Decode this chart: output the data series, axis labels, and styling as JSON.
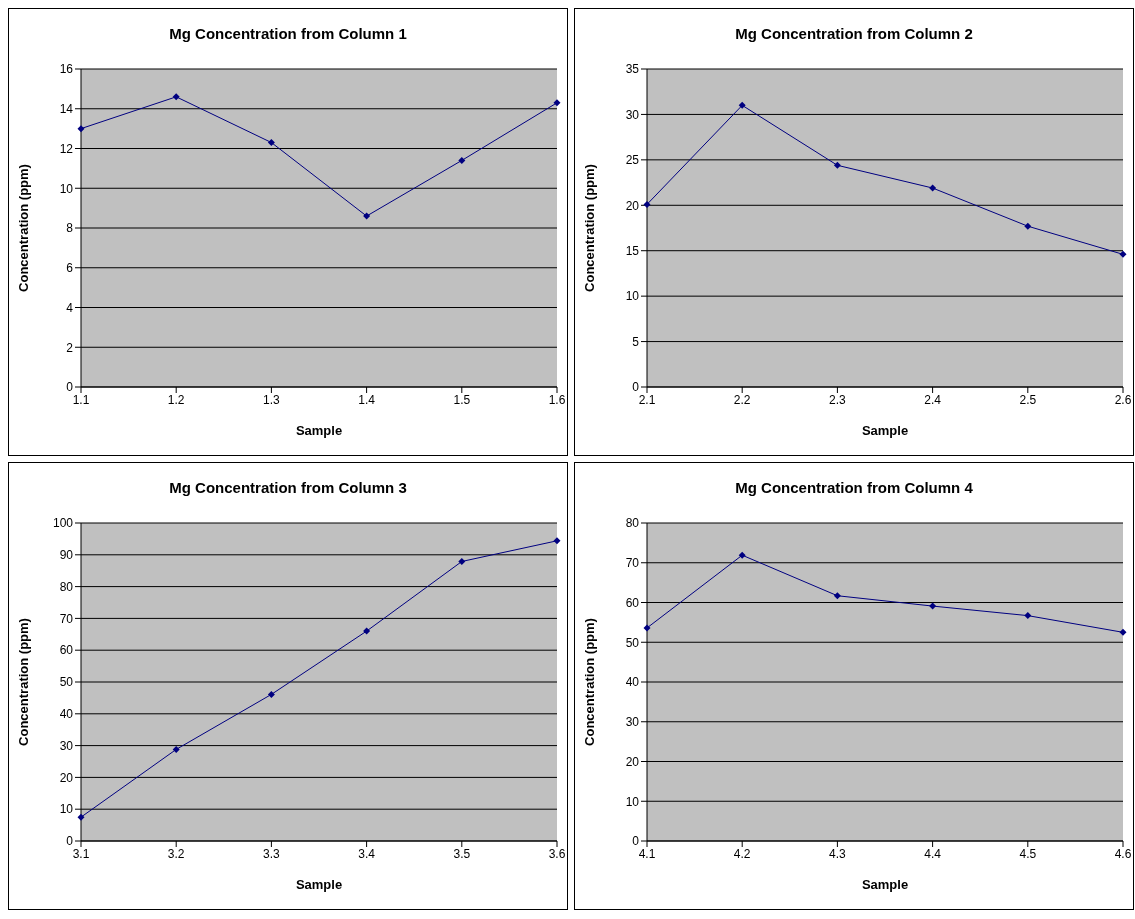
{
  "chart_data": [
    {
      "type": "line",
      "title": "Mg Concentration from Column 1",
      "xlabel": "Sample",
      "ylabel": "Concentration (ppm)",
      "categories": [
        "1.1",
        "1.2",
        "1.3",
        "1.4",
        "1.5",
        "1.6"
      ],
      "series": [
        {
          "color": "#000080",
          "values": [
            13.0,
            14.6,
            12.3,
            8.6,
            11.4,
            14.3
          ]
        }
      ],
      "ylim": [
        0,
        16
      ],
      "yticks": [
        0,
        2,
        4,
        6,
        8,
        10,
        12,
        14,
        16
      ],
      "grid": "y",
      "legend": false,
      "marker": "diamond",
      "line_style": "solid"
    },
    {
      "type": "line",
      "title": "Mg Concentration from Column 2",
      "xlabel": "Sample",
      "ylabel": "Concentration (ppm)",
      "categories": [
        "2.1",
        "2.2",
        "2.3",
        "2.4",
        "2.5",
        "2.6"
      ],
      "series": [
        {
          "color": "#000080",
          "values": [
            20.1,
            31.0,
            24.4,
            21.9,
            17.7,
            14.6
          ]
        }
      ],
      "ylim": [
        0,
        35
      ],
      "yticks": [
        0,
        5,
        10,
        15,
        20,
        25,
        30,
        35
      ],
      "grid": "y",
      "legend": false,
      "marker": "diamond",
      "line_style": "solid"
    },
    {
      "type": "line",
      "title": "Mg Concentration from Column 3",
      "xlabel": "Sample",
      "ylabel": "Concentration (ppm)",
      "categories": [
        "3.1",
        "3.2",
        "3.3",
        "3.4",
        "3.5",
        "3.6"
      ],
      "series": [
        {
          "color": "#000080",
          "values": [
            7.5,
            28.8,
            46.1,
            66.0,
            87.9,
            94.4
          ]
        }
      ],
      "ylim": [
        0,
        100
      ],
      "yticks": [
        0,
        10,
        20,
        30,
        40,
        50,
        60,
        70,
        80,
        90,
        100
      ],
      "grid": "y",
      "legend": false,
      "marker": "diamond",
      "line_style": "solid"
    },
    {
      "type": "line",
      "title": "Mg Concentration from Column 4",
      "xlabel": "Sample",
      "ylabel": "Concentration (ppm)",
      "categories": [
        "4.1",
        "4.2",
        "4.3",
        "4.4",
        "4.5",
        "4.6"
      ],
      "series": [
        {
          "color": "#000080",
          "values": [
            53.6,
            71.9,
            61.7,
            59.1,
            56.7,
            52.5
          ]
        }
      ],
      "ylim": [
        0,
        80
      ],
      "yticks": [
        0,
        10,
        20,
        30,
        40,
        50,
        60,
        70,
        80
      ],
      "grid": "y",
      "legend": false,
      "marker": "diamond",
      "line_style": "solid"
    }
  ]
}
